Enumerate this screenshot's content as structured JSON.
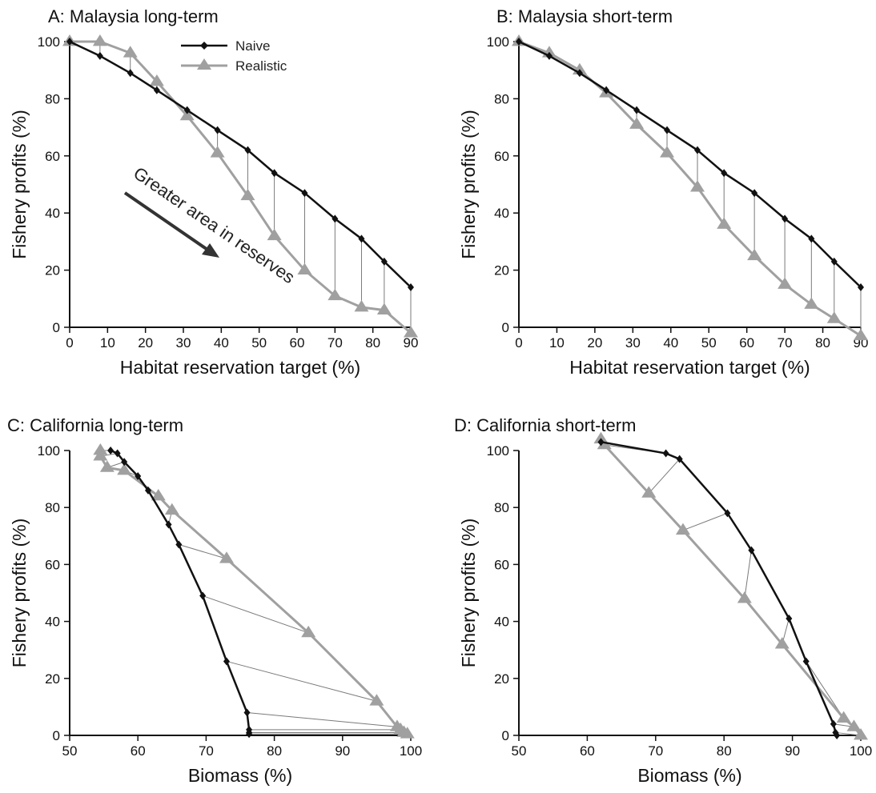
{
  "colors": {
    "naive": "#111111",
    "realistic": "#a0a0a0",
    "connector": "#7a7a7a",
    "arrow": "#333333"
  },
  "chart_data": [
    {
      "id": "A",
      "type": "line",
      "title": "A: Malaysia long-term",
      "xlabel": "Habitat reservation target (%)",
      "ylabel": "Fishery profits (%)",
      "xlim": [
        0,
        90
      ],
      "ylim": [
        0,
        100
      ],
      "xticks": [
        "0",
        "10",
        "20",
        "30",
        "40",
        "50",
        "60",
        "70",
        "80",
        "90"
      ],
      "yticks": [
        "0",
        "20",
        "40",
        "60",
        "80",
        "100"
      ],
      "grid": false,
      "legend": {
        "position": "top-center",
        "entries": [
          "Naive",
          "Realistic"
        ]
      },
      "annotation": {
        "text": "Greater area in reserves"
      },
      "series": [
        {
          "name": "Naive",
          "x": [
            0,
            8,
            16,
            23,
            31,
            39,
            47,
            54,
            62,
            70,
            77,
            83,
            90
          ],
          "y": [
            100,
            95,
            89,
            83,
            76,
            69,
            62,
            54,
            47,
            38,
            31,
            23,
            14
          ]
        },
        {
          "name": "Realistic",
          "x": [
            0,
            8,
            16,
            23,
            31,
            39,
            47,
            54,
            62,
            70,
            77,
            83,
            90
          ],
          "y": [
            100,
            100,
            96,
            86,
            74,
            61,
            46,
            32,
            20,
            11,
            7,
            6,
            -2
          ]
        }
      ],
      "connect_pairs": true
    },
    {
      "id": "B",
      "type": "line",
      "title": "B: Malaysia short-term",
      "xlabel": "Habitat reservation target (%)",
      "ylabel": "Fishery profits (%)",
      "xlim": [
        0,
        90
      ],
      "ylim": [
        0,
        100
      ],
      "xticks": [
        "0",
        "10",
        "20",
        "30",
        "40",
        "50",
        "60",
        "70",
        "80",
        "90"
      ],
      "yticks": [
        "0",
        "20",
        "40",
        "60",
        "80",
        "100"
      ],
      "grid": false,
      "series": [
        {
          "name": "Naive",
          "x": [
            0,
            8,
            16,
            23,
            31,
            39,
            47,
            54,
            62,
            70,
            77,
            83,
            90
          ],
          "y": [
            100,
            95,
            89,
            83,
            76,
            69,
            62,
            54,
            47,
            38,
            31,
            23,
            14
          ]
        },
        {
          "name": "Realistic",
          "x": [
            0,
            8,
            16,
            23,
            31,
            39,
            47,
            54,
            62,
            70,
            77,
            83,
            90
          ],
          "y": [
            100,
            96,
            90,
            82,
            71,
            61,
            49,
            36,
            25,
            15,
            8,
            3,
            -3
          ]
        }
      ],
      "connect_pairs": true
    },
    {
      "id": "C",
      "type": "line",
      "title": "C: California long-term",
      "xlabel": "Biomass (%)",
      "ylabel": "Fishery profits (%)",
      "xlim": [
        50,
        100
      ],
      "ylim": [
        0,
        100
      ],
      "xticks": [
        "50",
        "60",
        "70",
        "80",
        "90",
        "100"
      ],
      "yticks": [
        "0",
        "20",
        "40",
        "60",
        "80",
        "100"
      ],
      "grid": false,
      "series": [
        {
          "name": "Naive",
          "x": [
            56,
            57,
            58,
            60,
            61.5,
            64.5,
            66,
            69.5,
            73,
            76,
            76.3,
            76.3,
            76.3
          ],
          "y": [
            100,
            99,
            96,
            91,
            86,
            74,
            67,
            49,
            26,
            8,
            2,
            1,
            0.5
          ]
        },
        {
          "name": "Realistic",
          "x": [
            54.5,
            54.5,
            55.5,
            58,
            63,
            65,
            73,
            85,
            95,
            98,
            98.5,
            99,
            99.5
          ],
          "y": [
            100,
            98,
            94,
            93,
            84,
            79,
            62,
            36,
            12,
            3,
            2,
            1,
            0.5
          ]
        }
      ],
      "connect_pairs": true
    },
    {
      "id": "D",
      "type": "line",
      "title": "D: California short-term",
      "xlabel": "Biomass (%)",
      "ylabel": "Fishery profits (%)",
      "xlim": [
        50,
        100
      ],
      "ylim": [
        0,
        100
      ],
      "xticks": [
        "50",
        "60",
        "70",
        "80",
        "90",
        "100"
      ],
      "yticks": [
        "0",
        "20",
        "40",
        "60",
        "80",
        "100"
      ],
      "grid": false,
      "series": [
        {
          "name": "Naive",
          "x": [
            62,
            71.5,
            73.5,
            80.5,
            84,
            89.5,
            92,
            96,
            96.3,
            96.5
          ],
          "y": [
            103,
            99,
            97,
            78,
            65,
            41,
            26,
            4,
            1,
            0
          ]
        },
        {
          "name": "Realistic",
          "x": [
            62,
            62.5,
            69,
            74,
            83,
            88.5,
            97.5,
            99,
            100
          ],
          "y": [
            104,
            102,
            85,
            72,
            48,
            32,
            6,
            3,
            0
          ]
        }
      ],
      "connect_pairs": true
    }
  ]
}
